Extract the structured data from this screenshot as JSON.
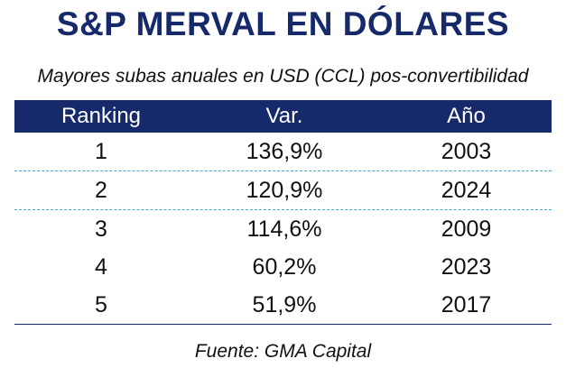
{
  "header": {
    "title": "S&P MERVAL EN DÓLARES",
    "subtitle": "Mayores subas anuales en USD (CCL) pos-convertibilidad"
  },
  "table": {
    "columns": [
      "Ranking",
      "Var.",
      "Año"
    ],
    "rows": [
      [
        "1",
        "136,9%",
        "2003"
      ],
      [
        "2",
        "120,9%",
        "2024"
      ],
      [
        "3",
        "114,6%",
        "2009"
      ],
      [
        "4",
        "60,2%",
        "2023"
      ],
      [
        "5",
        "51,9%",
        "2017"
      ]
    ]
  },
  "footer": {
    "source": "Fuente: GMA Capital"
  }
}
